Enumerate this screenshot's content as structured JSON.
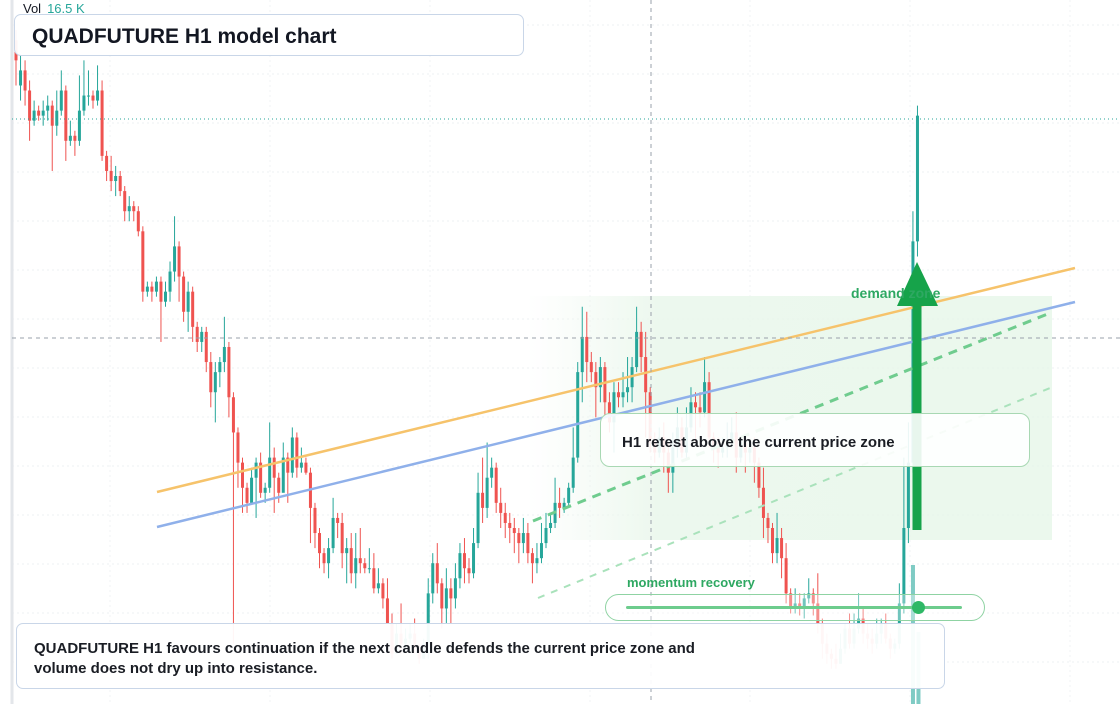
{
  "header": {
    "vol_label": "Vol",
    "vol_value": "16.5 K"
  },
  "title": "QUADFUTURE H1 model chart",
  "note": "QUADFUTURE H1 favours continuation if the next candle defends the current price zone and volume does not dry up into resistance.",
  "callout": "H1 retest above the current price zone",
  "zone_label": "demand zone",
  "momentum": {
    "label": "momentum recovery",
    "level": 0.87
  },
  "colors": {
    "up": "#26a69a",
    "down": "#ef5350",
    "volume_up": "#7fcbc4",
    "support_line": "#f6c36b",
    "trend_line": "#8fb0ea",
    "accent_green": "#2ea862",
    "zone_fill": "#edf8ee"
  },
  "chart_data": {
    "type": "candlestick",
    "title": "QUADFUTURE H1 model chart",
    "price_range": [
      0,
      700
    ],
    "series": [
      {
        "name": "price",
        "ohlc": [
          [
            660,
            640,
            670,
            615
          ],
          [
            615,
            630,
            645,
            600
          ],
          [
            630,
            610,
            640,
            595
          ],
          [
            610,
            580,
            620,
            560
          ],
          [
            580,
            590,
            600,
            575
          ],
          [
            590,
            585,
            595,
            580
          ],
          [
            585,
            590,
            600,
            575
          ],
          [
            590,
            595,
            605,
            580
          ],
          [
            595,
            575,
            600,
            530
          ],
          [
            575,
            590,
            610,
            565
          ],
          [
            590,
            610,
            630,
            585
          ],
          [
            610,
            560,
            615,
            540
          ],
          [
            560,
            565,
            580,
            555
          ],
          [
            565,
            560,
            570,
            545
          ],
          [
            560,
            590,
            625,
            555
          ],
          [
            590,
            605,
            640,
            585
          ],
          [
            605,
            605,
            630,
            595
          ],
          [
            605,
            600,
            610,
            592
          ],
          [
            600,
            610,
            635,
            595
          ],
          [
            610,
            545,
            620,
            540
          ],
          [
            545,
            530,
            550,
            520
          ],
          [
            530,
            520,
            545,
            510
          ],
          [
            520,
            525,
            535,
            505
          ],
          [
            525,
            510,
            530,
            505
          ],
          [
            510,
            490,
            515,
            480
          ],
          [
            490,
            495,
            505,
            480
          ],
          [
            495,
            490,
            500,
            480
          ],
          [
            490,
            470,
            495,
            465
          ],
          [
            470,
            410,
            475,
            400
          ],
          [
            410,
            415,
            420,
            405
          ],
          [
            415,
            410,
            420,
            400
          ],
          [
            410,
            420,
            425,
            405
          ],
          [
            420,
            400,
            425,
            360
          ],
          [
            400,
            410,
            420,
            395
          ],
          [
            410,
            430,
            440,
            400
          ],
          [
            430,
            455,
            485,
            420
          ],
          [
            455,
            425,
            460,
            400
          ],
          [
            425,
            390,
            430,
            380
          ],
          [
            390,
            410,
            420,
            370
          ],
          [
            410,
            375,
            415,
            360
          ],
          [
            375,
            360,
            380,
            350
          ],
          [
            360,
            370,
            375,
            350
          ],
          [
            370,
            340,
            375,
            330
          ],
          [
            340,
            310,
            350,
            295
          ],
          [
            310,
            330,
            340,
            280
          ],
          [
            330,
            340,
            345,
            315
          ],
          [
            340,
            355,
            385,
            330
          ],
          [
            355,
            305,
            360,
            285
          ],
          [
            305,
            270,
            310,
            60
          ],
          [
            270,
            240,
            275,
            215
          ],
          [
            240,
            215,
            245,
            190
          ],
          [
            215,
            200,
            220,
            190
          ],
          [
            200,
            225,
            235,
            205
          ],
          [
            225,
            240,
            245,
            185
          ],
          [
            240,
            210,
            250,
            205
          ],
          [
            210,
            215,
            220,
            200
          ],
          [
            215,
            245,
            280,
            210
          ],
          [
            245,
            225,
            255,
            190
          ],
          [
            225,
            210,
            230,
            200
          ],
          [
            210,
            245,
            260,
            235
          ],
          [
            245,
            230,
            250,
            200
          ],
          [
            230,
            265,
            275,
            225
          ],
          [
            265,
            235,
            270,
            225
          ],
          [
            235,
            240,
            255,
            230
          ],
          [
            240,
            230,
            245,
            228
          ],
          [
            230,
            195,
            235,
            160
          ],
          [
            195,
            170,
            200,
            155
          ],
          [
            170,
            150,
            175,
            135
          ],
          [
            150,
            140,
            155,
            130
          ],
          [
            140,
            155,
            165,
            125
          ],
          [
            155,
            185,
            205,
            150
          ],
          [
            185,
            180,
            190,
            165
          ],
          [
            180,
            150,
            190,
            135
          ],
          [
            150,
            155,
            165,
            120
          ],
          [
            155,
            130,
            170,
            120
          ],
          [
            130,
            145,
            170,
            115
          ],
          [
            145,
            140,
            175,
            130
          ],
          [
            140,
            135,
            145,
            130
          ],
          [
            135,
            135,
            155,
            130
          ],
          [
            135,
            115,
            150,
            110
          ],
          [
            115,
            120,
            135,
            110
          ],
          [
            120,
            105,
            125,
            95
          ],
          [
            105,
            80,
            125,
            80
          ],
          [
            80,
            50,
            90,
            45
          ],
          [
            50,
            70,
            80,
            50
          ],
          [
            70,
            60,
            100,
            50
          ],
          [
            60,
            65,
            75,
            55
          ],
          [
            65,
            70,
            80,
            60
          ],
          [
            70,
            55,
            85,
            50
          ],
          [
            55,
            45,
            60,
            40
          ],
          [
            45,
            60,
            65,
            50
          ],
          [
            60,
            110,
            125,
            45
          ],
          [
            110,
            140,
            150,
            100
          ],
          [
            140,
            120,
            160,
            110
          ],
          [
            120,
            95,
            125,
            75
          ],
          [
            95,
            115,
            135,
            80
          ],
          [
            115,
            105,
            125,
            80
          ],
          [
            105,
            125,
            140,
            95
          ],
          [
            125,
            150,
            160,
            115
          ],
          [
            150,
            135,
            165,
            120
          ],
          [
            135,
            130,
            145,
            120
          ],
          [
            130,
            160,
            175,
            125
          ],
          [
            160,
            210,
            230,
            155
          ],
          [
            210,
            195,
            245,
            180
          ],
          [
            195,
            225,
            260,
            185
          ],
          [
            225,
            235,
            245,
            215
          ],
          [
            235,
            200,
            240,
            190
          ],
          [
            200,
            190,
            215,
            175
          ],
          [
            190,
            180,
            200,
            165
          ],
          [
            180,
            175,
            190,
            160
          ],
          [
            175,
            170,
            185,
            150
          ],
          [
            170,
            160,
            175,
            140
          ],
          [
            160,
            170,
            185,
            150
          ],
          [
            170,
            150,
            180,
            140
          ],
          [
            150,
            140,
            155,
            120
          ],
          [
            140,
            145,
            160,
            130
          ],
          [
            145,
            160,
            180,
            140
          ],
          [
            160,
            175,
            190,
            155
          ],
          [
            175,
            180,
            190,
            170
          ],
          [
            180,
            200,
            225,
            175
          ],
          [
            200,
            195,
            215,
            185
          ],
          [
            195,
            200,
            205,
            190
          ],
          [
            200,
            215,
            220,
            195
          ],
          [
            215,
            245,
            275,
            210
          ],
          [
            245,
            330,
            340,
            240
          ],
          [
            330,
            365,
            395,
            300
          ],
          [
            365,
            340,
            390,
            320
          ],
          [
            340,
            330,
            350,
            320
          ],
          [
            330,
            315,
            340,
            285
          ],
          [
            315,
            335,
            345,
            300
          ],
          [
            335,
            300,
            340,
            285
          ],
          [
            300,
            280,
            310,
            270
          ],
          [
            280,
            310,
            320,
            250
          ],
          [
            310,
            305,
            320,
            295
          ],
          [
            305,
            310,
            330,
            295
          ],
          [
            310,
            315,
            345,
            300
          ],
          [
            315,
            335,
            345,
            300
          ],
          [
            335,
            370,
            395,
            330
          ],
          [
            370,
            345,
            380,
            330
          ],
          [
            345,
            310,
            370,
            265
          ],
          [
            310,
            260,
            315,
            250
          ],
          [
            260,
            250,
            270,
            240
          ],
          [
            250,
            265,
            275,
            245
          ],
          [
            265,
            250,
            280,
            230
          ],
          [
            250,
            230,
            260,
            210
          ],
          [
            230,
            255,
            270,
            210
          ],
          [
            255,
            275,
            295,
            245
          ],
          [
            275,
            250,
            285,
            245
          ],
          [
            250,
            275,
            295,
            245
          ],
          [
            275,
            300,
            315,
            270
          ],
          [
            300,
            295,
            310,
            260
          ],
          [
            295,
            290,
            310,
            275
          ],
          [
            290,
            320,
            345,
            285
          ],
          [
            320,
            265,
            330,
            255
          ],
          [
            265,
            255,
            270,
            240
          ],
          [
            255,
            250,
            265,
            235
          ],
          [
            250,
            255,
            265,
            245
          ],
          [
            255,
            260,
            280,
            245
          ],
          [
            260,
            270,
            285,
            255
          ],
          [
            270,
            245,
            290,
            230
          ],
          [
            245,
            260,
            265,
            240
          ],
          [
            260,
            250,
            265,
            230
          ],
          [
            250,
            255,
            260,
            240
          ],
          [
            255,
            240,
            265,
            220
          ],
          [
            240,
            215,
            245,
            205
          ],
          [
            215,
            185,
            235,
            165
          ],
          [
            185,
            175,
            190,
            160
          ],
          [
            175,
            150,
            180,
            140
          ],
          [
            150,
            165,
            190,
            140
          ],
          [
            165,
            145,
            175,
            125
          ],
          [
            145,
            110,
            160,
            100
          ],
          [
            110,
            95,
            115,
            90
          ],
          [
            95,
            100,
            115,
            90
          ],
          [
            100,
            95,
            110,
            88
          ],
          [
            95,
            105,
            110,
            85
          ],
          [
            105,
            110,
            125,
            100
          ],
          [
            110,
            100,
            115,
            88
          ],
          [
            100,
            80,
            130,
            70
          ],
          [
            80,
            60,
            85,
            45
          ],
          [
            60,
            50,
            70,
            40
          ],
          [
            50,
            45,
            55,
            35
          ],
          [
            45,
            40,
            60,
            35
          ],
          [
            40,
            55,
            70,
            40
          ],
          [
            55,
            75,
            80,
            50
          ],
          [
            75,
            60,
            90,
            55
          ],
          [
            60,
            75,
            90,
            55
          ],
          [
            75,
            85,
            110,
            70
          ],
          [
            85,
            70,
            95,
            60
          ],
          [
            70,
            65,
            80,
            55
          ],
          [
            65,
            60,
            75,
            50
          ],
          [
            60,
            70,
            85,
            55
          ],
          [
            70,
            80,
            85,
            60
          ],
          [
            80,
            65,
            90,
            60
          ],
          [
            65,
            55,
            70,
            45
          ],
          [
            55,
            60,
            65,
            50
          ],
          [
            60,
            100,
            120,
            55
          ],
          [
            100,
            175,
            245,
            90
          ],
          [
            175,
            240,
            280,
            160
          ],
          [
            240,
            460,
            490,
            230
          ],
          [
            460,
            585,
            595,
            445
          ]
        ]
      }
    ]
  }
}
